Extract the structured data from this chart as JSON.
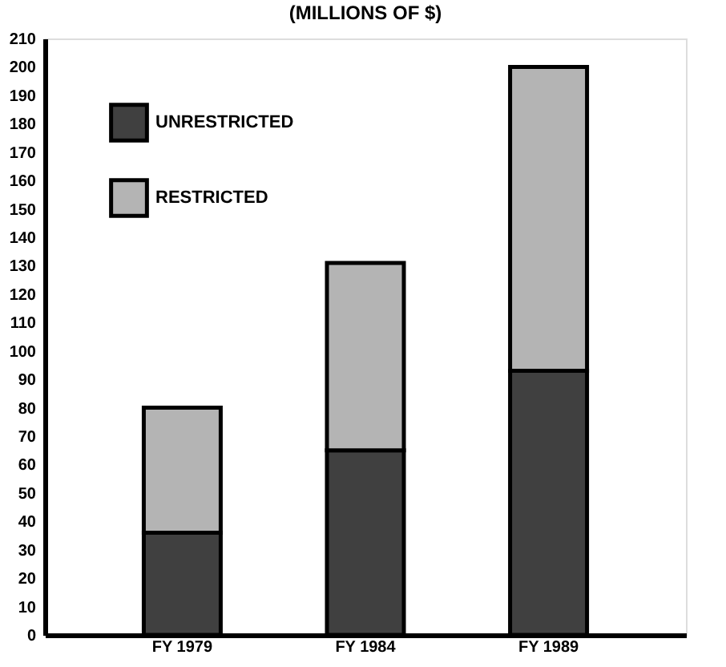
{
  "chart_data": {
    "type": "bar",
    "title": "(MILLIONS OF $)",
    "stacked": true,
    "categories": [
      "FY 1979",
      "FY 1984",
      "FY 1989"
    ],
    "series": [
      {
        "name": "UNRESTRICTED",
        "color": "#404040",
        "values": [
          36,
          65,
          93
        ]
      },
      {
        "name": "RESTRICTED",
        "color": "#b4b4b4",
        "values": [
          44,
          66,
          107
        ]
      }
    ],
    "ylim": [
      0,
      210
    ],
    "yticks": [
      0,
      10,
      20,
      30,
      40,
      50,
      60,
      70,
      80,
      90,
      100,
      110,
      120,
      130,
      140,
      150,
      160,
      170,
      180,
      190,
      200,
      210
    ],
    "grid": false,
    "legend": "top left"
  }
}
